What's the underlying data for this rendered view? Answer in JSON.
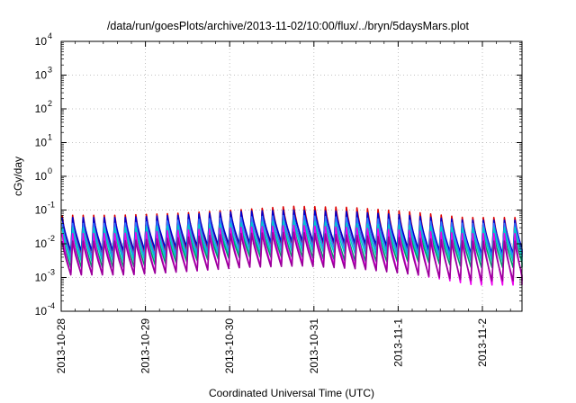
{
  "chart_data": {
    "type": "line",
    "title": "/data/run/goesPlots/archive/2013-11-02/10:00/flux/../bryn/5daysMars.plot",
    "xlabel": "Coordinated Universal Time (UTC)",
    "ylabel": "cGy/day",
    "yscale": "log",
    "ylim": [
      0.0001,
      10000
    ],
    "y_ticks": [
      {
        "base": "10",
        "exp": "-4"
      },
      {
        "base": "10",
        "exp": "-3"
      },
      {
        "base": "10",
        "exp": "-2"
      },
      {
        "base": "10",
        "exp": "-1"
      },
      {
        "base": "10",
        "exp": "0"
      },
      {
        "base": "10",
        "exp": "1"
      },
      {
        "base": "10",
        "exp": "2"
      },
      {
        "base": "10",
        "exp": "3"
      },
      {
        "base": "10",
        "exp": "4"
      }
    ],
    "x_range": [
      "2013-10-28T00:00",
      "2013-11-02T10:00"
    ],
    "x_tick_labels": [
      "2013-10-28",
      "2013-10-29",
      "2013-10-30",
      "2013-10-31",
      "2013-11-1",
      "2013-11-2"
    ],
    "grid": true,
    "legend": "none",
    "sawtooth_period_hours": 3,
    "series": [
      {
        "color": "#dd0000",
        "peaks": [
          0.07,
          0.07,
          0.08,
          0.1,
          0.13,
          0.12,
          0.09,
          0.06,
          0.06
        ],
        "troughs": [
          0.004,
          0.004,
          0.006,
          0.008,
          0.01,
          0.008,
          0.005,
          0.004,
          0.004
        ]
      },
      {
        "color": "#0000cc",
        "peaks": [
          0.06,
          0.06,
          0.07,
          0.09,
          0.1,
          0.09,
          0.07,
          0.05,
          0.05
        ],
        "troughs": [
          0.006,
          0.006,
          0.008,
          0.01,
          0.012,
          0.01,
          0.007,
          0.005,
          0.005
        ]
      },
      {
        "color": "#3377ff",
        "peaks": [
          0.04,
          0.04,
          0.05,
          0.06,
          0.07,
          0.06,
          0.05,
          0.04,
          0.04
        ],
        "troughs": [
          0.004,
          0.004,
          0.005,
          0.007,
          0.008,
          0.007,
          0.005,
          0.004,
          0.004
        ]
      },
      {
        "color": "#00cccc",
        "peaks": [
          0.03,
          0.03,
          0.035,
          0.04,
          0.05,
          0.04,
          0.035,
          0.03,
          0.03
        ],
        "troughs": [
          0.003,
          0.003,
          0.004,
          0.005,
          0.006,
          0.005,
          0.004,
          0.003,
          0.003
        ]
      },
      {
        "color": "#009966",
        "peaks": [
          0.02,
          0.02,
          0.025,
          0.03,
          0.035,
          0.03,
          0.025,
          0.02,
          0.02
        ],
        "troughs": [
          0.002,
          0.002,
          0.003,
          0.004,
          0.004,
          0.003,
          0.003,
          0.002,
          0.002
        ]
      },
      {
        "color": "#ee00ee",
        "peaks": [
          0.02,
          0.02,
          0.025,
          0.03,
          0.035,
          0.03,
          0.025,
          0.02,
          0.02
        ],
        "troughs": [
          0.0012,
          0.0012,
          0.0015,
          0.002,
          0.0025,
          0.002,
          0.0012,
          0.0006,
          0.0006
        ]
      },
      {
        "color": "#990099",
        "peaks": [
          0.012,
          0.012,
          0.015,
          0.02,
          0.022,
          0.018,
          0.015,
          0.012,
          0.012
        ],
        "troughs": [
          0.0012,
          0.0012,
          0.0015,
          0.002,
          0.0022,
          0.0018,
          0.0012,
          0.0008,
          0.0008
        ]
      }
    ]
  }
}
